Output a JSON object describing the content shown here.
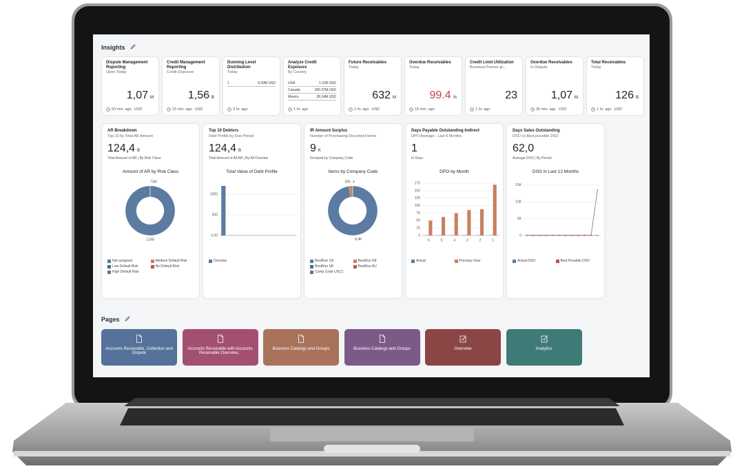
{
  "insights": {
    "title": "Insights",
    "tiles": [
      {
        "title": "Dispute Management Reporting",
        "subtitle": "Open Today",
        "value": "1,07",
        "unit": "M",
        "time": "53 min. ago",
        "currency": "USD"
      },
      {
        "title": "Credit Management Reporting",
        "subtitle": "Credit Exposure",
        "value": "1,56",
        "unit": "B",
        "time": "15 min. ago",
        "currency": "USD"
      },
      {
        "title": "Dunning Level Distribution",
        "subtitle": "Today",
        "rows": [
          {
            "label": "1",
            "value": "9,20M USD"
          }
        ],
        "time": "3 hr. ago"
      },
      {
        "title": "Analyze Credit Exposure",
        "subtitle": "By Country",
        "rows": [
          {
            "label": "USA",
            "value": "1.31B USD"
          },
          {
            "label": "Canada",
            "value": "200.37M USD"
          },
          {
            "label": "Mexico",
            "value": "28.14M USD"
          }
        ],
        "time": "1 hr. ago"
      },
      {
        "title": "Future Receivables",
        "subtitle": "Today",
        "value": "632",
        "unit": "M",
        "time": "1 hr. ago",
        "currency": "USD"
      },
      {
        "title": "Overdue Receivables",
        "subtitle": "Today",
        "value": "99.4",
        "unit": "%",
        "value_color": "#b9473f",
        "time": "15 min. ago"
      },
      {
        "title": "Credit Limit Utilization",
        "subtitle": "Business Partner gl...",
        "value": "23",
        "time": "1 hr. ago"
      },
      {
        "title": "Overdue Receivables",
        "subtitle": "In Dispute",
        "value": "1,07",
        "unit": "M",
        "time": "30 min. ago",
        "currency": "USD"
      },
      {
        "title": "Total Receivables",
        "subtitle": "Today",
        "value": "126",
        "unit": "B",
        "time": "1 hr. ago",
        "currency": "USD"
      }
    ]
  },
  "cards": [
    {
      "title": "AR Breakdown",
      "subtitle": "Top 10 by Total AR Amount",
      "value": "124,4",
      "unit": "B",
      "kpi_label": "Total Amount of AR | By Risk Class",
      "chart": {
        "type": "donut",
        "title": "Amount of AR by Risk Class",
        "segments": [
          {
            "value": 124,
            "label": "124B",
            "color": "#5b7ba1"
          },
          {
            "value": 0.073,
            "label": "73M",
            "color": "#c87f5e"
          }
        ],
        "legend": [
          {
            "name": "Not assigned",
            "color": "#5b7ba1"
          },
          {
            "name": "Medium Default Risk",
            "color": "#c87f5e"
          },
          {
            "name": "Low Default Risk",
            "color": "#3d7a78"
          },
          {
            "name": "No Default Risk",
            "color": "#c0504d"
          },
          {
            "name": "High Default Risk",
            "color": "#7a6a9a"
          }
        ]
      }
    },
    {
      "title": "Top 10 Debtors",
      "subtitle": "Debt Profile by Due Period",
      "value": "124,4",
      "unit": "B",
      "kpi_label": "Total Amount of All AR | By All Overdue",
      "chart": {
        "type": "bar",
        "title": "Total Value of Debt Profile",
        "categories": [
          null,
          null,
          null,
          null,
          null,
          null,
          null,
          null,
          null,
          null
        ],
        "series": [
          {
            "name": "Overdue",
            "color": "#5b7ba1",
            "values": [
              1200,
              4,
              4,
              4,
              4,
              4,
              4,
              4,
              4,
              4
            ]
          }
        ],
        "ylim": [
          0,
          1300
        ],
        "yticks": [
          {
            "value": 0,
            "label": "0.00"
          },
          500,
          1000
        ]
      }
    },
    {
      "title": "IR Amount Surplus",
      "subtitle": "Number of Purchasing Document Items",
      "value": "9",
      "unit": "K",
      "kpi_label": "Grouped by Company Code",
      "chart": {
        "type": "donut",
        "title": "Items by Company Code",
        "segments": [
          {
            "value": 8400,
            "label": "8,4K",
            "color": "#5b7ba1"
          },
          {
            "value": 206,
            "label": "206",
            "color": "#c87f5e"
          },
          {
            "value": 4,
            "label": "4",
            "color": "#3d7a78"
          }
        ],
        "legend": [
          {
            "name": "BestRun US",
            "color": "#5b7ba1"
          },
          {
            "name": "BestRun DE",
            "color": "#c87f5e"
          },
          {
            "name": "BestRun UK",
            "color": "#3d7a78"
          },
          {
            "name": "BestRun AU",
            "color": "#c0504d"
          },
          {
            "name": "Comp Code USC1",
            "color": "#7a6a9a"
          }
        ]
      }
    },
    {
      "title": "Days Payable Outstanding Indirect",
      "subtitle": "DPO Average - Last 6 Months",
      "value": "1",
      "kpi_label": "In Days",
      "chart": {
        "type": "bar",
        "title": "DPO by Month",
        "categories": [
          "6",
          "5",
          "4",
          "3",
          "2",
          "1"
        ],
        "series": [
          {
            "name": "Actual",
            "color": "#5b7ba1",
            "values": [
              1,
              1,
              1,
              1,
              1,
              1
            ]
          },
          {
            "name": "Previous Year",
            "color": "#c87f5e",
            "values": [
              50,
              62,
              75,
              85,
              88,
              170
            ]
          }
        ],
        "ylim": [
          0,
          180
        ],
        "yticks": [
          0,
          25,
          50,
          75,
          100,
          125,
          150,
          175
        ]
      }
    },
    {
      "title": "Days Sales Outstanding",
      "subtitle": "DSO vs Best possible DSO",
      "value": "62,0",
      "kpi_label": "Average DSO | By Period",
      "chart": {
        "type": "line",
        "title": "DSO in Last 12 Months",
        "categories": [
          null,
          null,
          null,
          null,
          null,
          null,
          null,
          null,
          null,
          null,
          null,
          null
        ],
        "series": [
          {
            "name": "Actual DSO",
            "color": "#5b7ba1",
            "values": [
              60,
              60,
              60,
              60,
              60,
              60,
              60,
              60,
              60,
              60,
              60,
              13500
            ]
          },
          {
            "name": "Best Possible DSO",
            "color": "#c0504d",
            "values": [
              20,
              20,
              20,
              20,
              20,
              20,
              20,
              20,
              20,
              20,
              20,
              20
            ]
          }
        ],
        "ylim": [
          0,
          16000
        ],
        "yticks": [
          0,
          {
            "value": 5000,
            "label": "5K"
          },
          {
            "value": 10000,
            "label": "10K"
          },
          {
            "value": 15000,
            "label": "15K"
          }
        ]
      }
    }
  ],
  "pages": {
    "title": "Pages",
    "items": [
      {
        "label": "Accounts Receivable, Collection and Dispute",
        "color": "#56719a",
        "icon": "doc"
      },
      {
        "label": "Accounts Receivable with Accounts Receivable Overview...",
        "color": "#a34f72",
        "icon": "doc"
      },
      {
        "label": "Business Catalogs and Groups",
        "color": "#a9725a",
        "icon": "doc"
      },
      {
        "label": "Business Catalogs and Groups",
        "color": "#7c5a88",
        "icon": "doc"
      },
      {
        "label": "Overview",
        "color": "#8a4645",
        "icon": "app"
      },
      {
        "label": "Analytics",
        "color": "#3e7b77",
        "icon": "app"
      }
    ]
  }
}
